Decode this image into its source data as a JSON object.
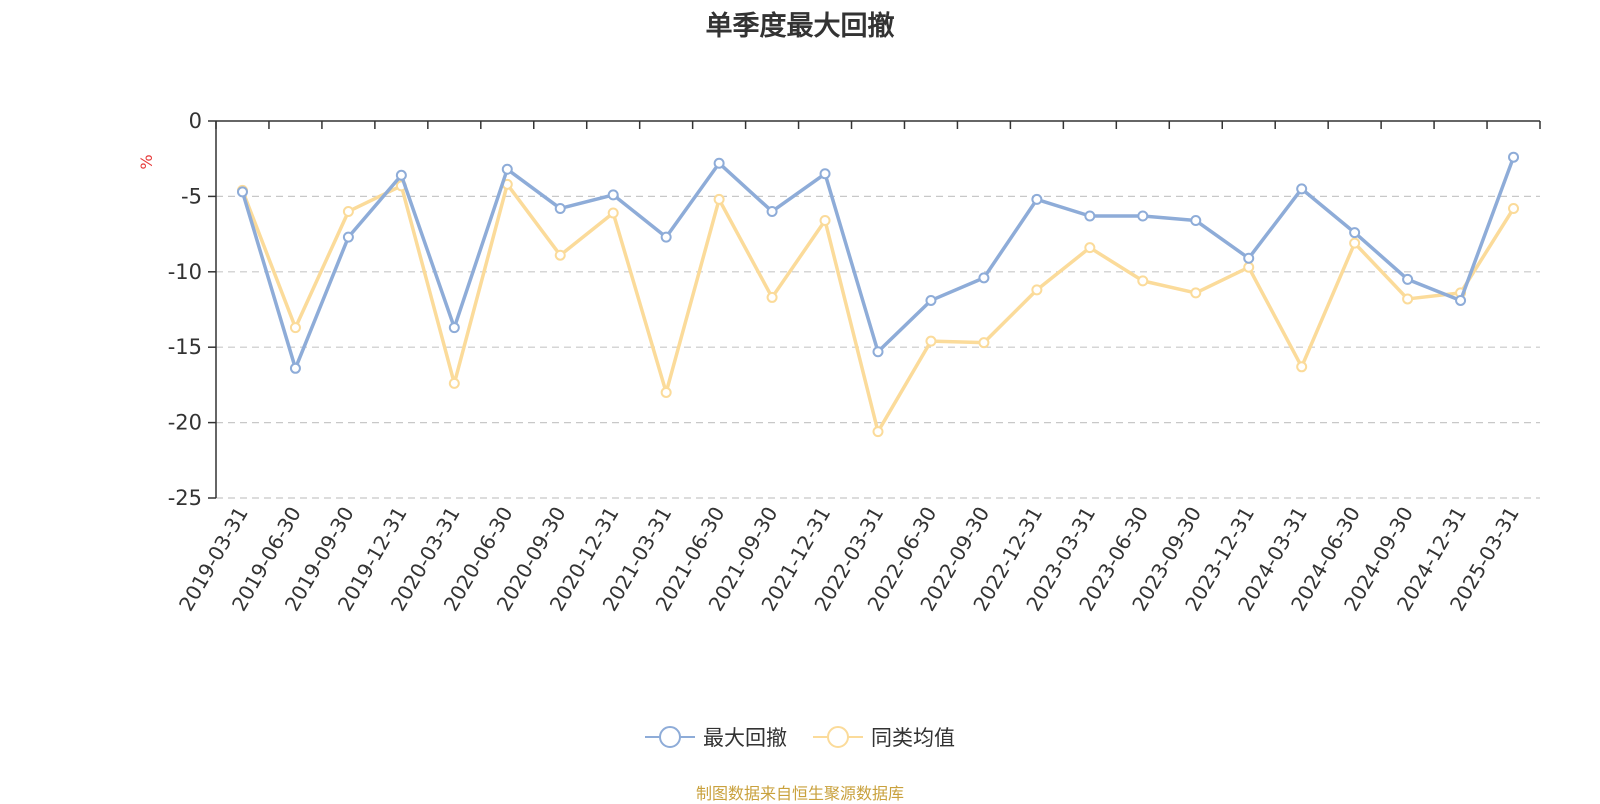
{
  "chart_data": {
    "type": "line",
    "title": "单季度最大回撤",
    "ylabel": "%",
    "ylim": [
      -25,
      0
    ],
    "yticks": [
      0,
      -5,
      -10,
      -15,
      -20,
      -25
    ],
    "grid": true,
    "legend_position": "bottom",
    "categories": [
      "2019-03-31",
      "2019-06-30",
      "2019-09-30",
      "2019-12-31",
      "2020-03-31",
      "2020-06-30",
      "2020-09-30",
      "2020-12-31",
      "2021-03-31",
      "2021-06-30",
      "2021-09-30",
      "2021-12-31",
      "2022-03-31",
      "2022-06-30",
      "2022-09-30",
      "2022-12-31",
      "2023-03-31",
      "2023-06-30",
      "2023-09-30",
      "2023-12-31",
      "2024-03-31",
      "2024-06-30",
      "2024-09-30",
      "2024-12-31",
      "2025-03-31"
    ],
    "series": [
      {
        "name": "最大回撤",
        "color": "#8eacd8",
        "values": [
          -4.7,
          -16.4,
          -7.7,
          -3.6,
          -13.7,
          -3.2,
          -5.8,
          -4.9,
          -7.7,
          -2.8,
          -6.0,
          -3.5,
          -15.3,
          -11.9,
          -10.4,
          -5.2,
          -6.3,
          -6.3,
          -6.6,
          -9.1,
          -4.5,
          -7.4,
          -10.5,
          -11.9,
          -2.4
        ]
      },
      {
        "name": "同类均值",
        "color": "#fbdb9a",
        "values": [
          -4.6,
          -13.7,
          -6.0,
          -4.3,
          -17.4,
          -4.2,
          -8.9,
          -6.1,
          -18.0,
          -5.2,
          -11.7,
          -6.6,
          -20.6,
          -14.6,
          -14.7,
          -11.2,
          -8.4,
          -10.6,
          -11.4,
          -9.7,
          -16.3,
          -8.1,
          -11.8,
          -11.4,
          -5.8
        ]
      }
    ]
  },
  "source_text": "制图数据来自恒生聚源数据库",
  "source_color": "#c9a13d",
  "ylabel_color": "#e63a3a"
}
